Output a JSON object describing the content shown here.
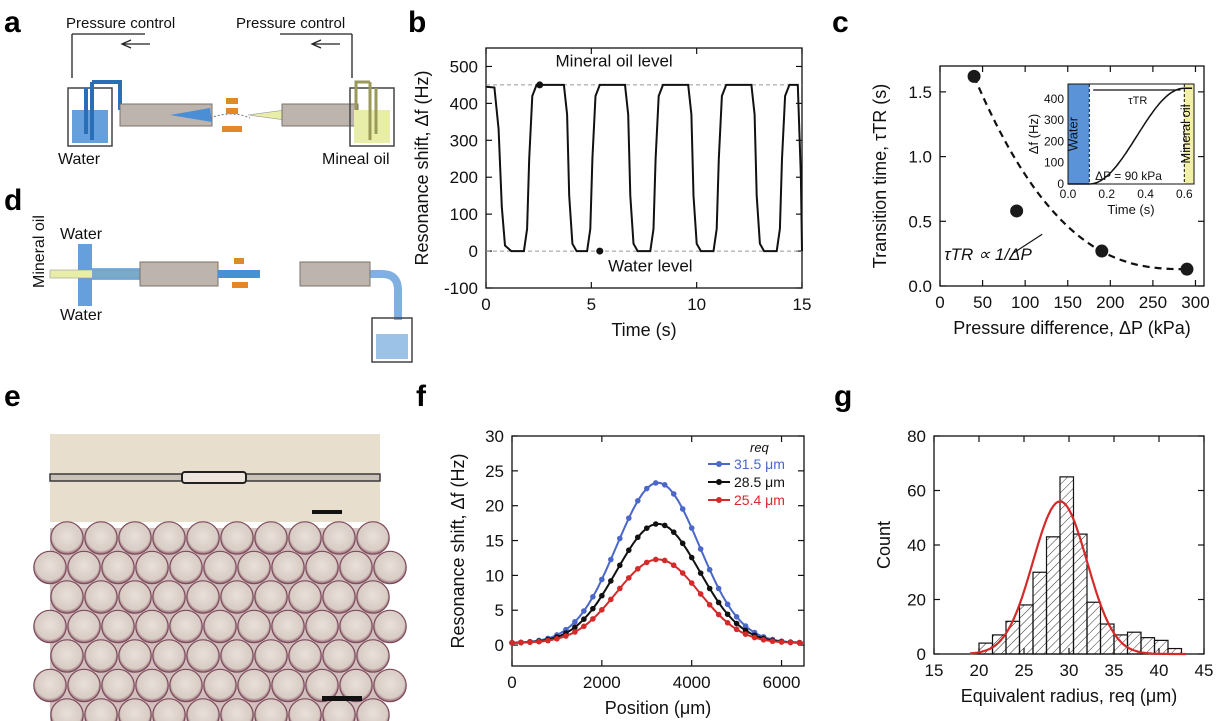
{
  "panels": {
    "a": {
      "letter": "a",
      "labels": {
        "pressure_left": "Pressure control",
        "pressure_right": "Pressure control",
        "water": "Water",
        "oil": "Mineal oil"
      }
    },
    "b": {
      "letter": "b"
    },
    "c": {
      "letter": "c"
    },
    "d": {
      "letter": "d",
      "labels": {
        "oil": "Mineral oil",
        "water_top": "Water",
        "water_bottom": "Water"
      }
    },
    "e": {
      "letter": "e"
    },
    "f": {
      "letter": "f"
    },
    "g": {
      "letter": "g"
    }
  },
  "colors": {
    "water": "#4a8fd6",
    "oil": "#e8eea8",
    "red": "#d42a2a",
    "blue": "#4a67c9",
    "black": "#111111",
    "pad": "#e0882a"
  },
  "chart_data": [
    {
      "id": "b",
      "type": "line",
      "xlabel": "Time (s)",
      "ylabel": "Resonance shift, Δf (Hz)",
      "xlim": [
        0,
        15
      ],
      "ylim": [
        -100,
        550
      ],
      "xticks": [
        0,
        5,
        10,
        15
      ],
      "yticks": [
        -100,
        0,
        100,
        200,
        300,
        400,
        500
      ],
      "levels": [
        450,
        0
      ],
      "annotations": {
        "top": "Mineral oil level",
        "bottom": "Water level"
      },
      "x": [
        0,
        0.4,
        0.6,
        0.75,
        0.9,
        1.2,
        1.8,
        1.95,
        2.05,
        2.2,
        2.4,
        3.7,
        3.85,
        3.95,
        4.1,
        4.3,
        4.8,
        4.95,
        5.05,
        5.2,
        5.4,
        6.6,
        6.75,
        6.85,
        7.0,
        7.2,
        7.8,
        7.95,
        8.05,
        8.2,
        8.4,
        9.6,
        9.75,
        9.85,
        10.0,
        10.2,
        10.8,
        10.95,
        11.05,
        11.2,
        11.4,
        12.6,
        12.75,
        12.85,
        13.0,
        13.2,
        13.8,
        13.95,
        14.05,
        14.2,
        14.4,
        14.8,
        14.95,
        15.0
      ],
      "y": [
        445,
        443,
        330,
        120,
        15,
        0,
        0,
        60,
        250,
        420,
        450,
        450,
        370,
        150,
        20,
        0,
        0,
        60,
        250,
        420,
        450,
        450,
        370,
        150,
        20,
        0,
        0,
        60,
        250,
        420,
        450,
        450,
        370,
        150,
        20,
        0,
        0,
        60,
        250,
        420,
        450,
        450,
        370,
        150,
        20,
        0,
        0,
        60,
        250,
        420,
        450,
        450,
        200,
        0
      ]
    },
    {
      "id": "c",
      "type": "scatter",
      "xlabel": "Pressure difference, ΔP (kPa)",
      "ylabel": "Transition time, τTR (s)",
      "xlim": [
        0,
        310
      ],
      "ylim": [
        0,
        1.7
      ],
      "xticks": [
        0,
        50,
        100,
        150,
        200,
        250,
        300
      ],
      "yticks": [
        0.0,
        0.5,
        1.0,
        1.5
      ],
      "points": {
        "x": [
          40,
          90,
          190,
          290
        ],
        "y": [
          1.62,
          0.58,
          0.27,
          0.13
        ]
      },
      "fit_annotation": "τTR ∝ 1/ΔP",
      "inset": {
        "xlabel": "Time (s)",
        "ylabel": "Δf (Hz)",
        "xlim": [
          0,
          0.65
        ],
        "ylim": [
          0,
          470
        ],
        "xticks": [
          0.0,
          0.2,
          0.4,
          0.6
        ],
        "yticks": [
          0,
          100,
          200,
          300,
          400
        ],
        "region_left": "Water",
        "region_right": "Mineral oil",
        "tau_label": "τTR",
        "dp_label": "ΔP = 90 kPa",
        "transition": [
          0.11,
          0.6
        ]
      }
    },
    {
      "id": "f",
      "type": "line",
      "xlabel": "Position (μm)",
      "ylabel": "Resonance shift, Δf (Hz)",
      "xlim": [
        0,
        6500
      ],
      "ylim": [
        -3,
        30
      ],
      "xticks": [
        0,
        2000,
        4000,
        6000
      ],
      "yticks": [
        0,
        5,
        10,
        15,
        20,
        25,
        30
      ],
      "legend_title": "req",
      "legend_position": "top-right",
      "series": [
        {
          "name": "31.5 μm",
          "color": "#4a67c9",
          "peak": 23.3
        },
        {
          "name": "28.5 μm",
          "color": "#111111",
          "peak": 17.4
        },
        {
          "name": "25.4 μm",
          "color": "#d42a2a",
          "peak": 12.3
        }
      ],
      "peak_position": 3250
    },
    {
      "id": "g",
      "type": "bar",
      "xlabel": "Equivalent radius, req (μm)",
      "ylabel": "Count",
      "xlim": [
        15,
        45
      ],
      "ylim": [
        0,
        80
      ],
      "xticks": [
        15,
        20,
        25,
        30,
        35,
        40,
        45
      ],
      "yticks": [
        0,
        20,
        40,
        60,
        80
      ],
      "bins": [
        20,
        21.5,
        23,
        24.5,
        26,
        27.5,
        29,
        30.5,
        32,
        33.5,
        35,
        36.5,
        38,
        39.5,
        41
      ],
      "bin_width": 1.5,
      "values": [
        4,
        7,
        12,
        18,
        30,
        43,
        65,
        44,
        19,
        11,
        7,
        8,
        6,
        5,
        2
      ],
      "fit": {
        "mean": 29,
        "sigma": 3.0,
        "peak": 56
      }
    }
  ]
}
